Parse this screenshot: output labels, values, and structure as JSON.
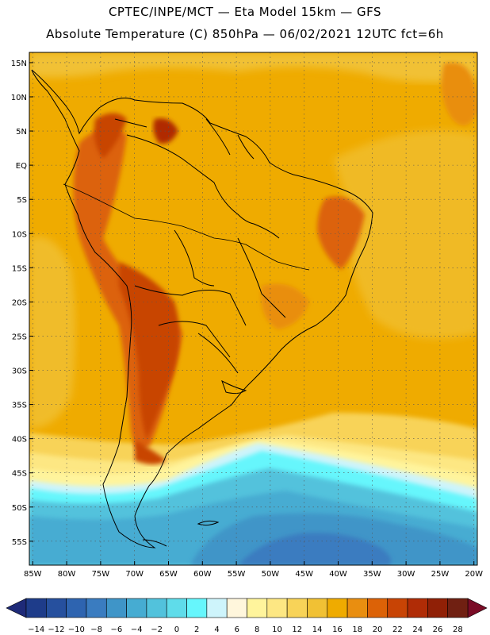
{
  "header": {
    "title_line1": "CPTEC/INPE/MCT —  Eta Model 15km — GFS",
    "title_line2": "Absolute Temperature (C) 850hPa — 06/02/2021 12UTC fct=6h"
  },
  "map": {
    "lat_labels": [
      "15N",
      "10N",
      "5N",
      "EQ",
      "5S",
      "10S",
      "15S",
      "20S",
      "25S",
      "30S",
      "35S",
      "40S",
      "45S",
      "50S",
      "55S"
    ],
    "lon_labels": [
      "85W",
      "80W",
      "75W",
      "70W",
      "65W",
      "60W",
      "55W",
      "50W",
      "45W",
      "40W",
      "35W",
      "30W",
      "25W",
      "20W"
    ]
  },
  "colorbar": {
    "labels": [
      "-14",
      "-12",
      "-10",
      "-8",
      "-6",
      "-4",
      "-2",
      "0",
      "2",
      "4",
      "6",
      "8",
      "10",
      "12",
      "14",
      "16",
      "18",
      "20",
      "22",
      "24",
      "26",
      "28"
    ],
    "colors": [
      "#1e3c8a",
      "#26509e",
      "#2e64b0",
      "#3a7cc0",
      "#3f95c8",
      "#46acd2",
      "#52c2dc",
      "#5fdcea",
      "#66f6fc",
      "#cef4fb",
      "#fff6dc",
      "#fff49c",
      "#fde783",
      "#f8d358",
      "#f1c134",
      "#efab00",
      "#e98e10",
      "#dc6207",
      "#c84405",
      "#b02c06",
      "#902006",
      "#702012"
    ],
    "left_color": "#1e2a78",
    "right_color": "#7a0c26"
  }
}
